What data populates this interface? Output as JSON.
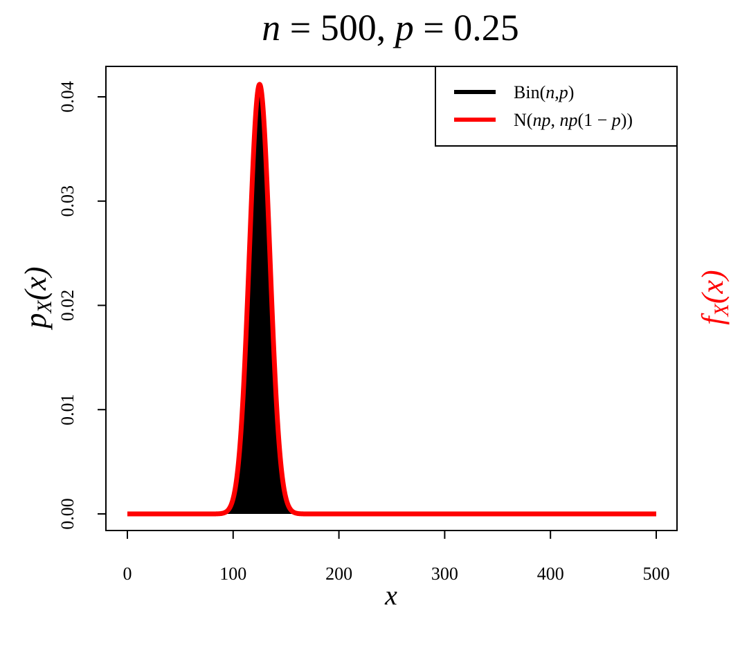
{
  "chart_data": {
    "type": "line",
    "title": {
      "var_n": "n",
      "eq1": " = 500, ",
      "var_p": "p",
      "eq2": " = 0.25"
    },
    "xlabel": "x",
    "ylabel": {
      "base": "p",
      "sub": "X",
      "arg": "(x)"
    },
    "ylabel_right": {
      "base": "f",
      "sub": "X",
      "arg": "(x)",
      "color": "#ff0000"
    },
    "xlim": [
      0,
      500
    ],
    "ylim": [
      0.0,
      0.0412
    ],
    "x_ticks": [
      0,
      100,
      200,
      300,
      400,
      500
    ],
    "x_tick_labels": [
      "0",
      "100",
      "200",
      "300",
      "400",
      "500"
    ],
    "y_ticks": [
      0.0,
      0.01,
      0.02,
      0.03,
      0.04
    ],
    "y_tick_labels": [
      "0.00",
      "0.01",
      "0.02",
      "0.03",
      "0.04"
    ],
    "grid": false,
    "legend_placement": "top-right",
    "series": [
      {
        "name": "Bin(n,p)",
        "type": "bar",
        "color": "#000000",
        "distribution": {
          "family": "binomial",
          "n": 500,
          "p": 0.25
        },
        "peak": {
          "x": 125,
          "y": 0.0411
        }
      },
      {
        "name": "N(np, np(1 − p))",
        "type": "line",
        "color": "#ff0000",
        "distribution": {
          "family": "normal",
          "mean": 125,
          "variance": 93.75
        },
        "peak": {
          "x": 125,
          "y": 0.0412
        }
      }
    ],
    "legend": {
      "entry1": {
        "a": "Bin(",
        "b": "n",
        "c": ",",
        "d": "p",
        "e": ")"
      },
      "entry2": {
        "a": "N(",
        "b": "np",
        "c": ", ",
        "d": "np",
        "e": "(1 − ",
        "f": "p",
        "g": "))"
      }
    }
  }
}
